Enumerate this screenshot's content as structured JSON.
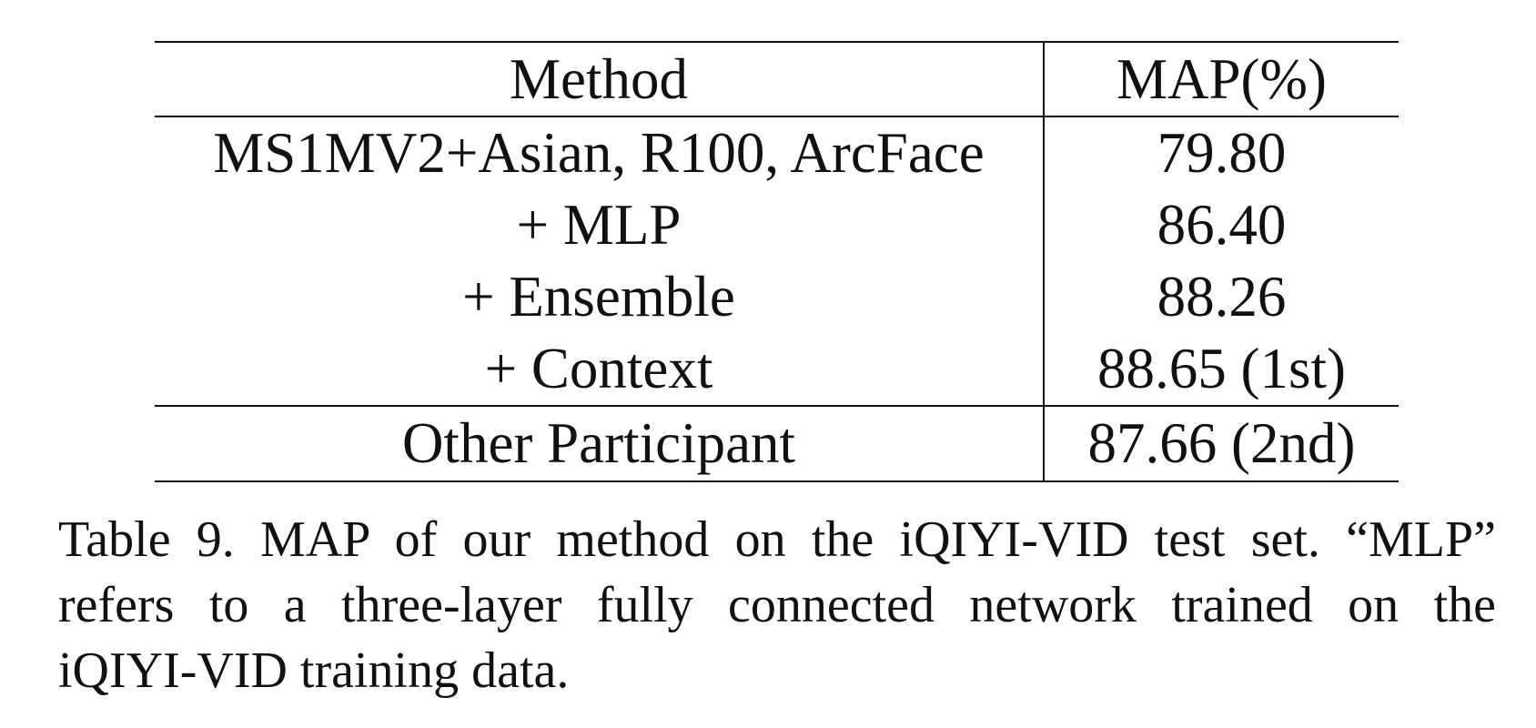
{
  "table": {
    "headers": {
      "method": "Method",
      "map": "MAP(%)"
    },
    "rows": [
      {
        "method": "MS1MV2+Asian, R100, ArcFace",
        "map": "79.80",
        "bold": false
      },
      {
        "method": "+ MLP",
        "map": "86.40",
        "bold": false
      },
      {
        "method": "+ Ensemble",
        "map": "88.26",
        "bold": false
      },
      {
        "method": "+ Context",
        "map": "88.65 (1st)",
        "bold": true
      }
    ],
    "other_row": {
      "method": "Other Participant",
      "map": "87.66 (2nd)"
    }
  },
  "caption": {
    "line1": "Table 9. MAP of our method on the iQIYI-VID test set. “MLP”",
    "line2": "refers to a three-layer fully connected network trained on the",
    "line3": "iQIYI-VID training data."
  }
}
